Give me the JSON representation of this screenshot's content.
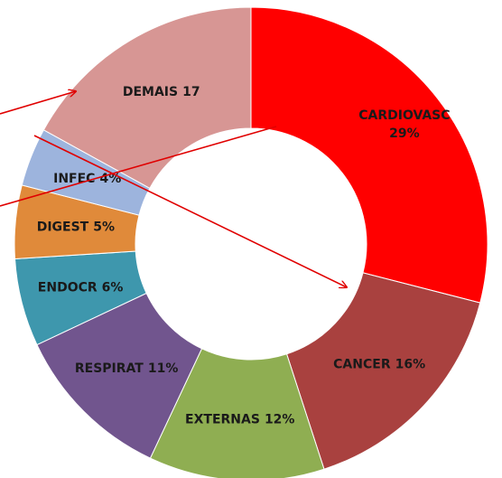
{
  "chart_data": {
    "type": "donut",
    "categories": [
      "CARDIOVASC",
      "CANCER",
      "EXTERNAS",
      "RESPIRAT",
      "ENDOCR",
      "DIGEST",
      "INFEC",
      "DEMAIS"
    ],
    "values": [
      29,
      16,
      12,
      11,
      6,
      5,
      4,
      17
    ],
    "value_labels": [
      "29%",
      "16%",
      "12%",
      "11%",
      "6%",
      "5%",
      "4%",
      "17"
    ],
    "colors": [
      "#ff0000",
      "#a9413f",
      "#8fae52",
      "#71558e",
      "#3e97ad",
      "#e08a3a",
      "#9db4dd",
      "#d79694"
    ]
  }
}
